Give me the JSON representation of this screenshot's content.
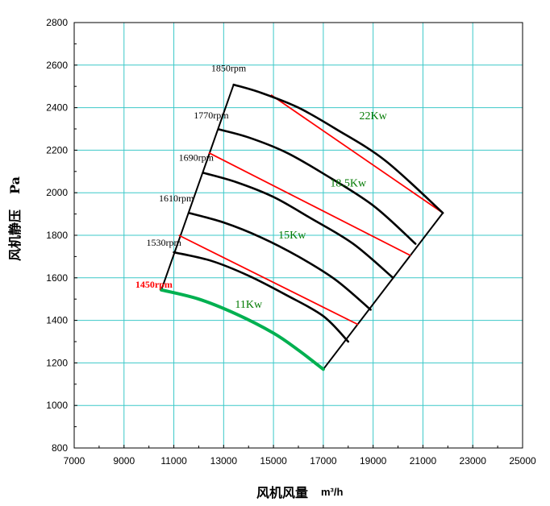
{
  "chart_data": {
    "type": "line",
    "title": "",
    "xlabel": "风机风量",
    "xunit": "m³/h",
    "ylabel": "风机静压",
    "yunit": "Pa",
    "xlim": [
      7000,
      25000
    ],
    "ylim": [
      800,
      2800
    ],
    "xticks": [
      "7000",
      "9000",
      "11000",
      "13000",
      "15000",
      "17000",
      "19000",
      "21000",
      "23000",
      "25000"
    ],
    "yticks": [
      "800",
      "1000",
      "1200",
      "1400",
      "1600",
      "1800",
      "2000",
      "2200",
      "2400",
      "2600",
      "2800"
    ],
    "grid": true,
    "grid_color": "#3cc8c8",
    "colors": {
      "curve": "#000000",
      "power": "#ff0000",
      "base": "#00b050",
      "label_green": "#007a00",
      "label_red": "#ff0000"
    },
    "series": [
      {
        "name": "1450rpm",
        "color": "#00b050",
        "x": [
          10500,
          12000,
          13500,
          15000,
          16000,
          17000
        ],
        "y": [
          1543,
          1500,
          1430,
          1340,
          1260,
          1170
        ]
      },
      {
        "name": "1530rpm",
        "color": "#000000",
        "x": [
          11000,
          12500,
          14000,
          15500,
          17000,
          18000
        ],
        "y": [
          1720,
          1680,
          1610,
          1520,
          1420,
          1300
        ]
      },
      {
        "name": "1610rpm",
        "color": "#000000",
        "x": [
          11600,
          13000,
          14500,
          16000,
          17500,
          18900
        ],
        "y": [
          1905,
          1860,
          1790,
          1700,
          1590,
          1450
        ]
      },
      {
        "name": "1690rpm",
        "color": "#000000",
        "x": [
          12200,
          13500,
          15000,
          16500,
          18200,
          19800
        ],
        "y": [
          2093,
          2050,
          1980,
          1880,
          1760,
          1600
        ]
      },
      {
        "name": "1770rpm",
        "color": "#000000",
        "x": [
          12800,
          14000,
          15500,
          17000,
          19000,
          20700
        ],
        "y": [
          2298,
          2260,
          2190,
          2090,
          1940,
          1760
        ]
      },
      {
        "name": "1850rpm",
        "color": "#000000",
        "x": [
          13400,
          14500,
          16000,
          17500,
          19500,
          21800
        ],
        "y": [
          2508,
          2470,
          2400,
          2300,
          2150,
          1905
        ]
      }
    ],
    "power_lines": [
      {
        "x": [
          11200,
          18400
        ],
        "y": [
          1800,
          1380
        ]
      },
      {
        "x": [
          12400,
          20500
        ],
        "y": [
          2188,
          1705
        ]
      },
      {
        "x": [
          14900,
          21800
        ],
        "y": [
          2460,
          1905
        ]
      }
    ],
    "envelope": {
      "left": {
        "x": [
          10500,
          13400
        ],
        "y": [
          1543,
          2508
        ]
      },
      "right": {
        "x": [
          17000,
          21800
        ],
        "y": [
          1170,
          1905
        ]
      }
    },
    "annotations": [
      {
        "text": "1850rpm",
        "x": 13200,
        "y": 2570,
        "color": "#000000"
      },
      {
        "text": "1770rpm",
        "x": 12500,
        "y": 2350,
        "color": "#000000"
      },
      {
        "text": "1690rpm",
        "x": 11900,
        "y": 2150,
        "color": "#000000"
      },
      {
        "text": "1610rpm",
        "x": 11100,
        "y": 1960,
        "color": "#000000"
      },
      {
        "text": "1530rpm",
        "x": 10600,
        "y": 1750,
        "color": "#000000"
      },
      {
        "text": "1450rpm",
        "x": 10200,
        "y": 1553,
        "color": "#ff0000"
      },
      {
        "text": "22Kw",
        "x": 19000,
        "y": 2345,
        "color": "#007a00"
      },
      {
        "text": "18.5Kw",
        "x": 18000,
        "y": 2030,
        "color": "#007a00"
      },
      {
        "text": "15Kw",
        "x": 15750,
        "y": 1785,
        "color": "#007a00"
      },
      {
        "text": "11Kw",
        "x": 14000,
        "y": 1460,
        "color": "#007a00"
      }
    ]
  }
}
